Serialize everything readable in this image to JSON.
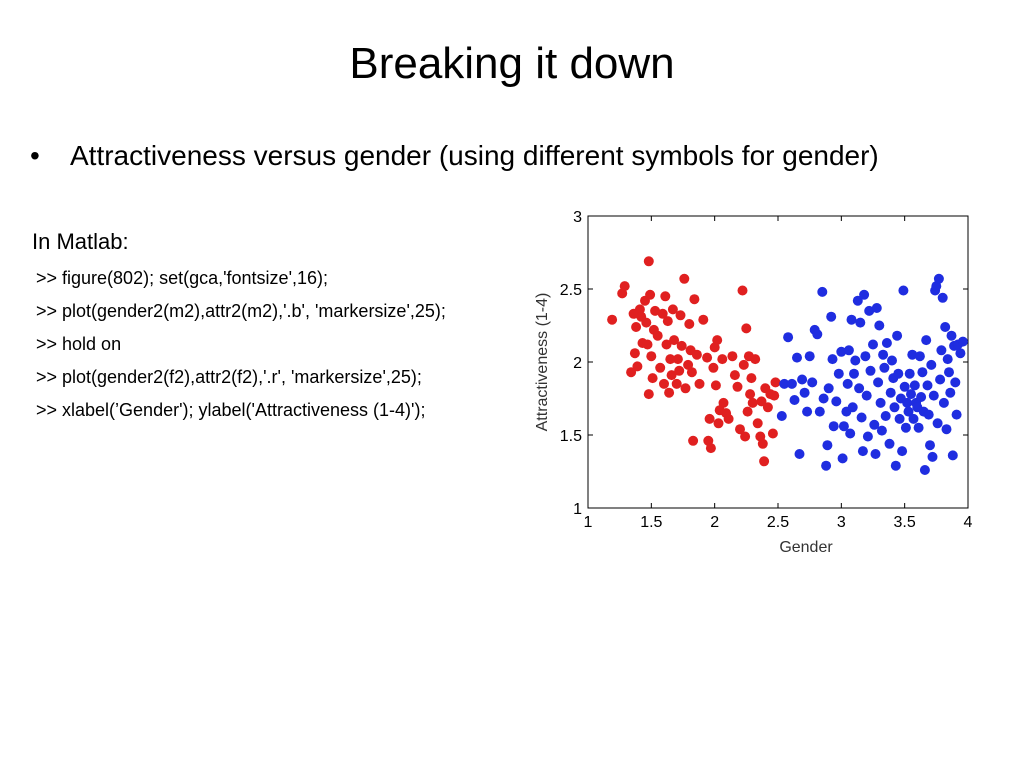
{
  "slide": {
    "title": "Breaking it down",
    "bullet": "Attractiveness versus gender (using different symbols for gender)",
    "code_heading": "In Matlab:",
    "code_lines": [
      ">> figure(802); set(gca,'fontsize',16);",
      ">> plot(gender2(m2),attr2(m2),'.b', 'markersize',25);",
      ">> hold on",
      ">> plot(gender2(f2),attr2(f2),'.r', 'markersize',25);",
      ">> xlabel(’Gender'); ylabel('Attractiveness (1-4)');"
    ]
  },
  "chart_data": {
    "type": "scatter",
    "xlabel": "Gender",
    "ylabel": "Attractiveness (1-4)",
    "xlim": [
      1,
      4
    ],
    "ylim": [
      1,
      3
    ],
    "xticks": [
      1,
      1.5,
      2,
      2.5,
      3,
      3.5,
      4
    ],
    "yticks": [
      1,
      1.5,
      2,
      2.5,
      3
    ],
    "xtick_labels": [
      "1",
      "1.5",
      "2",
      "2.5",
      "3",
      "3.5",
      "4"
    ],
    "ytick_labels": [
      "1",
      "1.5",
      "2",
      "2.5",
      "3"
    ],
    "grid": false,
    "series": [
      {
        "color": "#e02020",
        "points": [
          [
            1.19,
            2.29
          ],
          [
            1.27,
            2.47
          ],
          [
            1.29,
            2.52
          ],
          [
            1.34,
            1.93
          ],
          [
            1.36,
            2.33
          ],
          [
            1.37,
            2.06
          ],
          [
            1.38,
            2.24
          ],
          [
            1.39,
            1.97
          ],
          [
            1.41,
            2.36
          ],
          [
            1.42,
            2.31
          ],
          [
            1.43,
            2.13
          ],
          [
            1.45,
            2.42
          ],
          [
            1.46,
            2.27
          ],
          [
            1.47,
            2.12
          ],
          [
            1.48,
            1.78
          ],
          [
            1.48,
            2.69
          ],
          [
            1.49,
            2.46
          ],
          [
            1.5,
            2.04
          ],
          [
            1.51,
            1.89
          ],
          [
            1.52,
            2.22
          ],
          [
            1.53,
            2.35
          ],
          [
            1.55,
            2.18
          ],
          [
            1.57,
            1.96
          ],
          [
            1.59,
            2.33
          ],
          [
            1.6,
            1.85
          ],
          [
            1.61,
            2.45
          ],
          [
            1.62,
            2.12
          ],
          [
            1.63,
            2.28
          ],
          [
            1.64,
            1.79
          ],
          [
            1.65,
            2.02
          ],
          [
            1.66,
            1.91
          ],
          [
            1.67,
            2.36
          ],
          [
            1.68,
            2.15
          ],
          [
            1.7,
            1.85
          ],
          [
            1.71,
            2.02
          ],
          [
            1.72,
            1.94
          ],
          [
            1.73,
            2.32
          ],
          [
            1.74,
            2.11
          ],
          [
            1.76,
            2.57
          ],
          [
            1.77,
            1.82
          ],
          [
            1.79,
            1.98
          ],
          [
            1.8,
            2.26
          ],
          [
            1.81,
            2.08
          ],
          [
            1.82,
            1.93
          ],
          [
            1.83,
            1.46
          ],
          [
            1.84,
            2.43
          ],
          [
            1.86,
            2.05
          ],
          [
            1.88,
            1.85
          ],
          [
            1.91,
            2.29
          ],
          [
            1.94,
            2.03
          ],
          [
            1.95,
            1.46
          ],
          [
            1.96,
            1.61
          ],
          [
            1.97,
            1.41
          ],
          [
            1.99,
            1.96
          ],
          [
            2.0,
            2.1
          ],
          [
            2.01,
            1.84
          ],
          [
            2.02,
            2.15
          ],
          [
            2.03,
            1.58
          ],
          [
            2.04,
            1.67
          ],
          [
            2.06,
            2.02
          ],
          [
            2.07,
            1.72
          ],
          [
            2.09,
            1.65
          ],
          [
            2.11,
            1.61
          ],
          [
            2.14,
            2.04
          ],
          [
            2.16,
            1.91
          ],
          [
            2.18,
            1.83
          ],
          [
            2.2,
            1.54
          ],
          [
            2.22,
            2.49
          ],
          [
            2.23,
            1.98
          ],
          [
            2.24,
            1.49
          ],
          [
            2.25,
            2.23
          ],
          [
            2.26,
            1.66
          ],
          [
            2.27,
            2.04
          ],
          [
            2.28,
            1.78
          ],
          [
            2.29,
            1.89
          ],
          [
            2.3,
            1.72
          ],
          [
            2.32,
            2.02
          ],
          [
            2.34,
            1.58
          ],
          [
            2.36,
            1.49
          ],
          [
            2.37,
            1.73
          ],
          [
            2.38,
            1.44
          ],
          [
            2.39,
            1.32
          ],
          [
            2.4,
            1.82
          ],
          [
            2.42,
            1.69
          ],
          [
            2.44,
            1.78
          ],
          [
            2.46,
            1.51
          ],
          [
            2.47,
            1.77
          ],
          [
            2.48,
            1.86
          ]
        ]
      },
      {
        "color": "#1f2de0",
        "points": [
          [
            2.53,
            1.63
          ],
          [
            2.55,
            1.85
          ],
          [
            2.58,
            2.17
          ],
          [
            2.61,
            1.85
          ],
          [
            2.63,
            1.74
          ],
          [
            2.65,
            2.03
          ],
          [
            2.67,
            1.37
          ],
          [
            2.69,
            1.88
          ],
          [
            2.71,
            1.79
          ],
          [
            2.73,
            1.66
          ],
          [
            2.75,
            2.04
          ],
          [
            2.77,
            1.86
          ],
          [
            2.79,
            2.22
          ],
          [
            2.81,
            2.19
          ],
          [
            2.83,
            1.66
          ],
          [
            2.85,
            2.48
          ],
          [
            2.86,
            1.75
          ],
          [
            2.88,
            1.29
          ],
          [
            2.89,
            1.43
          ],
          [
            2.9,
            1.82
          ],
          [
            2.92,
            2.31
          ],
          [
            2.93,
            2.02
          ],
          [
            2.94,
            1.56
          ],
          [
            2.96,
            1.73
          ],
          [
            2.98,
            1.92
          ],
          [
            3.0,
            2.07
          ],
          [
            3.01,
            1.34
          ],
          [
            3.02,
            1.56
          ],
          [
            3.04,
            1.66
          ],
          [
            3.05,
            1.85
          ],
          [
            3.06,
            2.08
          ],
          [
            3.07,
            1.51
          ],
          [
            3.08,
            2.29
          ],
          [
            3.09,
            1.69
          ],
          [
            3.1,
            1.92
          ],
          [
            3.11,
            2.01
          ],
          [
            3.13,
            2.42
          ],
          [
            3.14,
            1.82
          ],
          [
            3.15,
            2.27
          ],
          [
            3.16,
            1.62
          ],
          [
            3.17,
            1.39
          ],
          [
            3.18,
            2.46
          ],
          [
            3.19,
            2.04
          ],
          [
            3.2,
            1.77
          ],
          [
            3.21,
            1.49
          ],
          [
            3.22,
            2.35
          ],
          [
            3.23,
            1.94
          ],
          [
            3.25,
            2.12
          ],
          [
            3.26,
            1.57
          ],
          [
            3.27,
            1.37
          ],
          [
            3.28,
            2.37
          ],
          [
            3.29,
            1.86
          ],
          [
            3.3,
            2.25
          ],
          [
            3.31,
            1.72
          ],
          [
            3.32,
            1.53
          ],
          [
            3.33,
            2.05
          ],
          [
            3.34,
            1.96
          ],
          [
            3.35,
            1.63
          ],
          [
            3.36,
            2.13
          ],
          [
            3.38,
            1.44
          ],
          [
            3.39,
            1.79
          ],
          [
            3.4,
            2.01
          ],
          [
            3.41,
            1.89
          ],
          [
            3.42,
            1.69
          ],
          [
            3.43,
            1.29
          ],
          [
            3.44,
            2.18
          ],
          [
            3.45,
            1.92
          ],
          [
            3.46,
            1.61
          ],
          [
            3.47,
            1.75
          ],
          [
            3.48,
            1.39
          ],
          [
            3.49,
            2.49
          ],
          [
            3.5,
            1.83
          ],
          [
            3.51,
            1.55
          ],
          [
            3.52,
            1.72
          ],
          [
            3.53,
            1.66
          ],
          [
            3.54,
            1.92
          ],
          [
            3.55,
            1.78
          ],
          [
            3.56,
            2.05
          ],
          [
            3.57,
            1.61
          ],
          [
            3.58,
            1.84
          ],
          [
            3.59,
            1.72
          ],
          [
            3.6,
            1.69
          ],
          [
            3.61,
            1.55
          ],
          [
            3.62,
            2.04
          ],
          [
            3.63,
            1.76
          ],
          [
            3.64,
            1.93
          ],
          [
            3.65,
            1.66
          ],
          [
            3.66,
            1.26
          ],
          [
            3.67,
            2.15
          ],
          [
            3.68,
            1.84
          ],
          [
            3.69,
            1.64
          ],
          [
            3.7,
            1.43
          ],
          [
            3.71,
            1.98
          ],
          [
            3.72,
            1.35
          ],
          [
            3.73,
            1.77
          ],
          [
            3.74,
            2.49
          ],
          [
            3.75,
            2.52
          ],
          [
            3.76,
            1.58
          ],
          [
            3.77,
            2.57
          ],
          [
            3.78,
            1.88
          ],
          [
            3.79,
            2.08
          ],
          [
            3.8,
            2.44
          ],
          [
            3.81,
            1.72
          ],
          [
            3.82,
            2.24
          ],
          [
            3.83,
            1.54
          ],
          [
            3.84,
            2.02
          ],
          [
            3.85,
            1.93
          ],
          [
            3.86,
            1.79
          ],
          [
            3.87,
            2.18
          ],
          [
            3.88,
            1.36
          ],
          [
            3.89,
            2.11
          ],
          [
            3.9,
            1.86
          ],
          [
            3.91,
            1.64
          ],
          [
            3.92,
            2.12
          ],
          [
            3.94,
            2.06
          ],
          [
            3.96,
            2.14
          ]
        ]
      }
    ]
  }
}
